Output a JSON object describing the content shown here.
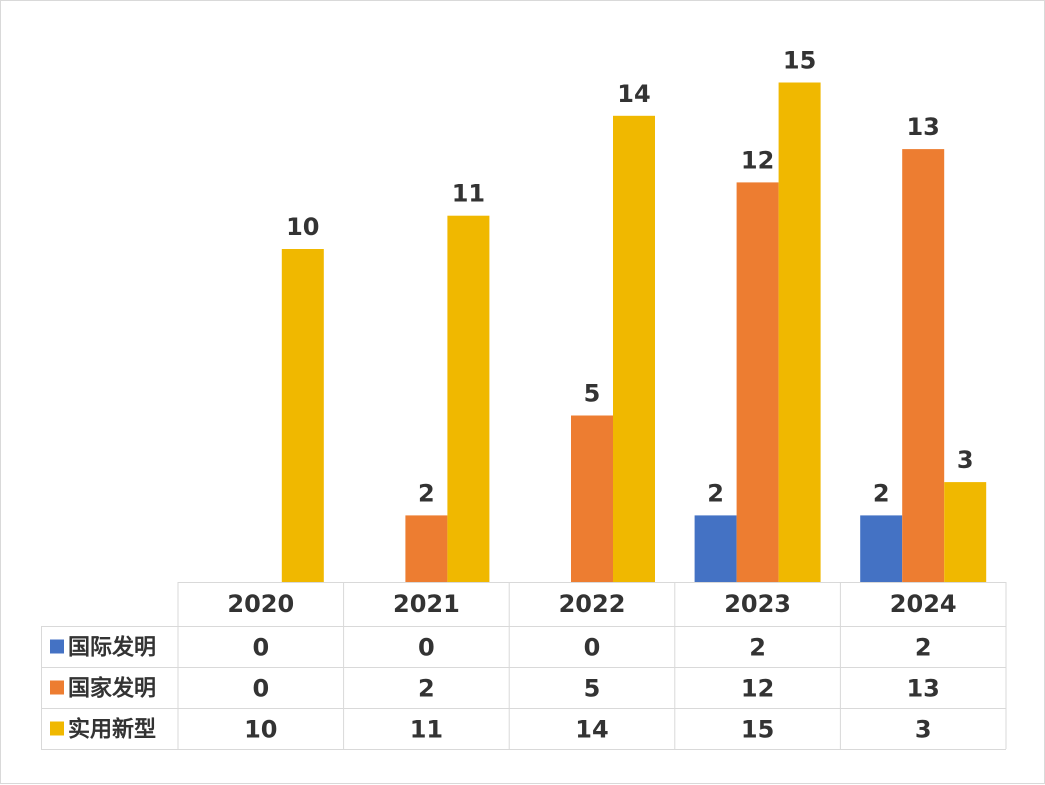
{
  "chart_data": {
    "type": "bar",
    "categories": [
      "2020",
      "2021",
      "2022",
      "2023",
      "2024"
    ],
    "series": [
      {
        "name": "国际发明",
        "color": "#4472c4",
        "values": [
          0,
          0,
          0,
          2,
          2
        ]
      },
      {
        "name": "国家发明",
        "color": "#ed7d31",
        "values": [
          0,
          2,
          5,
          12,
          13
        ]
      },
      {
        "name": "实用新型",
        "color": "#f0b800",
        "values": [
          10,
          11,
          14,
          15,
          3
        ]
      }
    ],
    "ylim": [
      0,
      16
    ],
    "grid": false,
    "legend": "data-table-left",
    "data_table": true
  }
}
